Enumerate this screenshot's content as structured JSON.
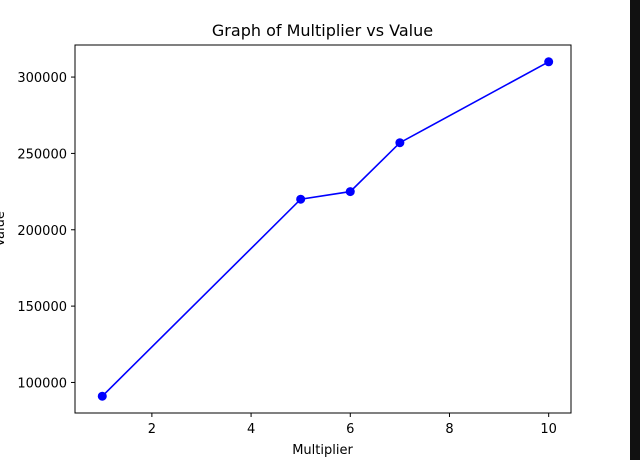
{
  "chart_data": {
    "type": "line",
    "title": "Graph of Multiplier vs Value",
    "xlabel": "Multiplier",
    "ylabel": "Value",
    "x": [
      1,
      5,
      6,
      7,
      10
    ],
    "series": [
      {
        "values": [
          91000,
          220000,
          225000,
          257000,
          310000
        ],
        "color": "#0000ff",
        "marker": "circle"
      }
    ],
    "xlim": [
      0.45,
      10.45
    ],
    "ylim": [
      80000,
      321000
    ],
    "xticks": [
      2,
      4,
      6,
      8,
      10
    ],
    "yticks": [
      100000,
      150000,
      200000,
      250000,
      300000
    ],
    "grid": false
  },
  "side_panel": {
    "color": "#111111"
  }
}
